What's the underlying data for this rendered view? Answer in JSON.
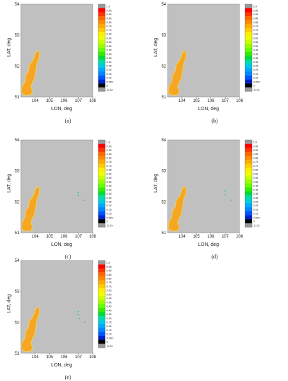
{
  "chart_data": [
    {
      "type": "heatmap",
      "caption": "(a)",
      "xlabel": "LON, deg",
      "ylabel": "LAT, deg",
      "xlim": [
        103,
        108
      ],
      "ylim": [
        51,
        54
      ],
      "xticks": [
        "104",
        "105",
        "106",
        "107",
        "108"
      ],
      "yticks": [
        "51",
        "52",
        "53",
        "54"
      ],
      "colorbar_labels": [
        "1.0",
        "0.95",
        "0.90",
        "0.85",
        "0.80",
        "0.75",
        "0.70",
        "0.65",
        "0.60",
        "0.55",
        "0.50",
        "0.45",
        "0.40",
        "0.35",
        "0.30",
        "0.25",
        "0.20",
        "0.15",
        "0.10",
        "0.050",
        "0",
        "-0.10"
      ],
      "extra_points": []
    },
    {
      "type": "heatmap",
      "caption": "(b)",
      "xlabel": "LON, deg",
      "ylabel": "LAT, deg",
      "xlim": [
        103,
        108
      ],
      "ylim": [
        51,
        54
      ],
      "xticks": [
        "104",
        "105",
        "106",
        "107",
        "108"
      ],
      "yticks": [
        "51",
        "52",
        "53",
        "54"
      ],
      "colorbar_labels": [
        "1.0",
        "0.95",
        "0.90",
        "0.85",
        "0.80",
        "0.75",
        "0.70",
        "0.65",
        "0.60",
        "0.55",
        "0.50",
        "0.45",
        "0.40",
        "0.35",
        "0.30",
        "0.25",
        "0.20",
        "0.15",
        "0.10",
        "0.050",
        "0",
        "-0.10"
      ],
      "extra_points": []
    },
    {
      "type": "heatmap",
      "caption": "(c)",
      "xlabel": "LON, deg",
      "ylabel": "LAT, deg",
      "xlim": [
        103,
        108
      ],
      "ylim": [
        51,
        54
      ],
      "xticks": [
        "104",
        "105",
        "106",
        "107",
        "108"
      ],
      "yticks": [
        "51",
        "52",
        "53",
        "54"
      ],
      "colorbar_labels": [
        "1.0",
        "0.95",
        "0.90",
        "0.85",
        "0.80",
        "0.75",
        "0.70",
        "0.65",
        "0.60",
        "0.55",
        "0.50",
        "0.45",
        "0.40",
        "0.35",
        "0.30",
        "0.25",
        "0.20",
        "0.15",
        "0.10",
        "0.050",
        "0",
        "-0.10"
      ],
      "extra_points": [
        [
          107.0,
          52.3
        ],
        [
          107.0,
          52.2
        ],
        [
          107.35,
          52.05
        ]
      ]
    },
    {
      "type": "heatmap",
      "caption": "(d)",
      "xlabel": "LON, deg",
      "ylabel": "LAT, deg",
      "xlim": [
        103,
        108
      ],
      "ylim": [
        51,
        54
      ],
      "xticks": [
        "104",
        "105",
        "106",
        "107",
        "108"
      ],
      "yticks": [
        "51",
        "52",
        "53",
        "54"
      ],
      "colorbar_labels": [
        "1.0",
        "0.95",
        "0.90",
        "0.85",
        "0.80",
        "0.75",
        "0.70",
        "0.65",
        "0.60",
        "0.55",
        "0.50",
        "0.45",
        "0.40",
        "0.35",
        "0.30",
        "0.25",
        "0.20",
        "0.15",
        "0.10",
        "0.050",
        "0",
        "-0.10"
      ],
      "extra_points": [
        [
          107.0,
          52.35
        ],
        [
          107.0,
          52.22
        ],
        [
          107.4,
          52.05
        ]
      ]
    },
    {
      "type": "heatmap",
      "caption": "(e)",
      "xlabel": "LON, deg",
      "ylabel": "LAT, deg",
      "xlim": [
        103,
        108
      ],
      "ylim": [
        51,
        54
      ],
      "xticks": [
        "104",
        "105",
        "106",
        "107",
        "108"
      ],
      "yticks": [
        "51",
        "52",
        "53",
        "54"
      ],
      "colorbar_labels": [
        "1.0",
        "0.95",
        "0.90",
        "0.85",
        "0.80",
        "0.75",
        "0.70",
        "0.65",
        "0.60",
        "0.55",
        "0.50",
        "0.45",
        "0.40",
        "0.35",
        "0.30",
        "0.25",
        "0.20",
        "0.15",
        "0.10",
        "0.050",
        "0",
        "-0.10"
      ],
      "extra_points": [
        [
          107.0,
          52.35
        ],
        [
          107.0,
          52.25
        ],
        [
          107.05,
          52.12
        ],
        [
          107.45,
          52.0
        ]
      ]
    }
  ],
  "colors": {
    "background": "#c0c0c0",
    "colorbar": [
      "#999999",
      "#ff0000",
      "#ff3300",
      "#ff6600",
      "#ff8800",
      "#ffaa00",
      "#ffcc00",
      "#ffee00",
      "#eeff00",
      "#ccff00",
      "#99ff00",
      "#66ff00",
      "#33ee00",
      "#00dd33",
      "#00ddaa",
      "#00ccdd",
      "#00aaff",
      "#0088ff",
      "#0055ff",
      "#0022cc",
      "#000000",
      "#999999"
    ],
    "region": "#f5a623",
    "region_edge": "#ffd24a",
    "point": "#33cc66"
  }
}
